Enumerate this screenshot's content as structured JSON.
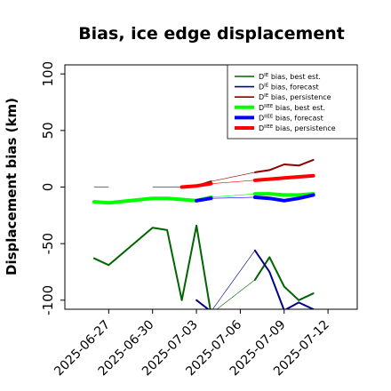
{
  "chart_data": {
    "type": "line",
    "title": "Bias, ice edge displacement",
    "ylabel": "Displacement bias (km)",
    "xlabel": "",
    "ylim": [
      -108,
      108
    ],
    "xlim": [
      "2025-06-24",
      "2025-07-14"
    ],
    "yticks": [
      -100,
      -50,
      0,
      50,
      100
    ],
    "xticks": [
      "2025-06-27",
      "2025-06-30",
      "2025-07-03",
      "2025-07-06",
      "2025-07-09",
      "2025-07-12"
    ],
    "highlight_tick": "2025-07-03",
    "highlight_color": "#228b22",
    "grid": false,
    "legend_position": "top-right",
    "reference_segments": [
      {
        "x": [
          "2025-06-26",
          "2025-06-27"
        ],
        "y": [
          0,
          0
        ],
        "color": "#808080"
      },
      {
        "x": [
          "2025-06-30",
          "2025-07-02"
        ],
        "y": [
          0,
          0
        ],
        "color": "#808080"
      }
    ],
    "series": [
      {
        "name": "D<sup>IE</sup> bias, best est.",
        "color": "#006400",
        "width": 2,
        "points": [
          [
            "2025-06-26",
            -63
          ],
          [
            "2025-06-27",
            -69
          ],
          [
            "2025-06-30",
            -36
          ],
          [
            "2025-07-01",
            -38
          ],
          [
            "2025-07-02",
            -100
          ],
          [
            "2025-07-03",
            -34
          ],
          [
            "2025-07-04",
            -112
          ],
          null,
          [
            "2025-07-07",
            -82
          ],
          [
            "2025-07-08",
            -62
          ],
          [
            "2025-07-09",
            -88
          ],
          [
            "2025-07-10",
            -100
          ],
          [
            "2025-07-11",
            -94
          ]
        ]
      },
      {
        "name": "D<sup>IE</sup> bias, forecast",
        "color": "#00008b",
        "width": 2,
        "points": [
          [
            "2025-07-03",
            -100
          ],
          [
            "2025-07-04",
            -110
          ],
          null,
          [
            "2025-07-07",
            -56
          ],
          [
            "2025-07-08",
            -75
          ],
          [
            "2025-07-09",
            -109
          ],
          [
            "2025-07-10",
            -102
          ],
          [
            "2025-07-11",
            -108
          ]
        ]
      },
      {
        "name": "D<sup>IE</sup> bias, persistence",
        "color": "#8b0000",
        "width": 2,
        "points": [
          [
            "2025-07-02",
            0
          ],
          [
            "2025-07-03",
            1
          ],
          [
            "2025-07-04",
            5
          ],
          null,
          [
            "2025-07-07",
            13
          ],
          [
            "2025-07-08",
            15
          ],
          [
            "2025-07-09",
            20
          ],
          [
            "2025-07-10",
            19
          ],
          [
            "2025-07-11",
            24
          ]
        ]
      },
      {
        "name": "D<sup>IIEE</sup> bias, best est.",
        "color": "#00ff00",
        "width": 4,
        "points": [
          [
            "2025-06-26",
            -13
          ],
          [
            "2025-06-27",
            -14
          ],
          [
            "2025-06-30",
            -10
          ],
          [
            "2025-07-01",
            -10
          ],
          [
            "2025-07-02",
            -11
          ],
          [
            "2025-07-03",
            -12
          ],
          [
            "2025-07-04",
            -9
          ],
          null,
          [
            "2025-07-07",
            -6
          ],
          [
            "2025-07-08",
            -6
          ],
          [
            "2025-07-09",
            -7
          ],
          [
            "2025-07-10",
            -7
          ],
          [
            "2025-07-11",
            -6
          ]
        ]
      },
      {
        "name": "D<sup>IIEE</sup> bias, forecast",
        "color": "#0000ff",
        "width": 4,
        "points": [
          [
            "2025-07-03",
            -12
          ],
          [
            "2025-07-04",
            -10
          ],
          null,
          [
            "2025-07-07",
            -9
          ],
          [
            "2025-07-08",
            -10
          ],
          [
            "2025-07-09",
            -12
          ],
          [
            "2025-07-10",
            -10
          ],
          [
            "2025-07-11",
            -7
          ]
        ]
      },
      {
        "name": "D<sup>IIEE</sup> bias, persistence",
        "color": "#ff0000",
        "width": 4,
        "points": [
          [
            "2025-07-02",
            0
          ],
          [
            "2025-07-03",
            1
          ],
          [
            "2025-07-04",
            3
          ],
          null,
          [
            "2025-07-07",
            6
          ],
          [
            "2025-07-08",
            7
          ],
          [
            "2025-07-09",
            8
          ],
          [
            "2025-07-10",
            9
          ],
          [
            "2025-07-11",
            10
          ]
        ]
      }
    ],
    "thin_connectors": [
      {
        "color": "#006400",
        "points": [
          [
            "2025-06-27",
            -69
          ],
          [
            "2025-06-30",
            -36
          ]
        ]
      },
      {
        "color": "#00ff00",
        "points": [
          [
            "2025-06-27",
            -14
          ],
          [
            "2025-06-30",
            -10
          ]
        ]
      },
      {
        "color": "#006400",
        "points": [
          [
            "2025-07-04",
            -112
          ],
          [
            "2025-07-07",
            -82
          ]
        ]
      },
      {
        "color": "#00008b",
        "points": [
          [
            "2025-07-04",
            -110
          ],
          [
            "2025-07-07",
            -56
          ]
        ]
      },
      {
        "color": "#8b0000",
        "points": [
          [
            "2025-07-04",
            5
          ],
          [
            "2025-07-07",
            13
          ]
        ]
      },
      {
        "color": "#00ff00",
        "points": [
          [
            "2025-07-04",
            -9
          ],
          [
            "2025-07-07",
            -6
          ]
        ]
      },
      {
        "color": "#0000ff",
        "points": [
          [
            "2025-07-04",
            -10
          ],
          [
            "2025-07-07",
            -9
          ]
        ]
      },
      {
        "color": "#ff0000",
        "points": [
          [
            "2025-07-04",
            3
          ],
          [
            "2025-07-07",
            6
          ]
        ]
      }
    ]
  }
}
